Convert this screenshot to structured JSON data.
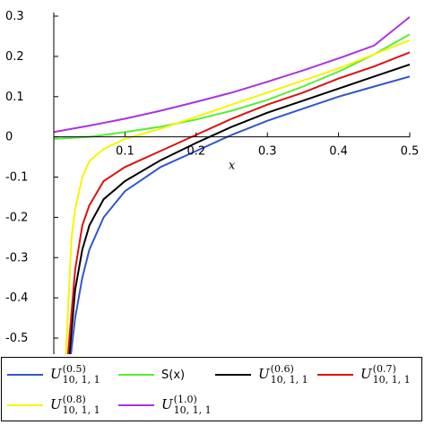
{
  "chart_data": {
    "type": "line",
    "xlabel": "x",
    "ylabel": "",
    "xlim": [
      0,
      0.5
    ],
    "ylim": [
      -0.54,
      0.3
    ],
    "xticks": [
      "0.1",
      "0.2",
      "0.3",
      "0.4",
      "0.5"
    ],
    "yticks": [
      "0.3",
      "0.2",
      "0.1",
      "0",
      "-0.1",
      "-0.2",
      "-0.3",
      "-0.4",
      "-0.5"
    ],
    "grid": false,
    "legend_position": "bottom",
    "series": [
      {
        "key": "u05",
        "color": "#3355cc",
        "x": [
          0.024,
          0.03,
          0.04,
          0.05,
          0.07,
          0.1,
          0.15,
          0.2,
          0.25,
          0.3,
          0.35,
          0.4,
          0.45,
          0.5
        ],
        "y": [
          -0.54,
          -0.45,
          -0.35,
          -0.28,
          -0.2,
          -0.135,
          -0.075,
          -0.035,
          0.005,
          0.04,
          0.07,
          0.1,
          0.125,
          0.15
        ]
      },
      {
        "key": "s",
        "color": "#55ee33",
        "x": [
          0.0,
          0.05,
          0.1,
          0.15,
          0.2,
          0.25,
          0.3,
          0.35,
          0.4,
          0.45,
          0.5
        ],
        "y": [
          -0.005,
          0.0,
          0.012,
          0.025,
          0.043,
          0.065,
          0.092,
          0.125,
          0.162,
          0.205,
          0.255
        ]
      },
      {
        "key": "u06",
        "color": "#000000",
        "x": [
          0.022,
          0.03,
          0.04,
          0.05,
          0.07,
          0.1,
          0.15,
          0.2,
          0.25,
          0.3,
          0.35,
          0.4,
          0.45,
          0.5
        ],
        "y": [
          -0.54,
          -0.38,
          -0.28,
          -0.22,
          -0.155,
          -0.11,
          -0.058,
          -0.015,
          0.025,
          0.06,
          0.09,
          0.12,
          0.15,
          0.18
        ]
      },
      {
        "key": "u07",
        "color": "#dd1111",
        "x": [
          0.02,
          0.03,
          0.04,
          0.05,
          0.07,
          0.1,
          0.15,
          0.2,
          0.25,
          0.3,
          0.35,
          0.4,
          0.45,
          0.5
        ],
        "y": [
          -0.54,
          -0.33,
          -0.22,
          -0.17,
          -0.11,
          -0.075,
          -0.035,
          0.005,
          0.045,
          0.08,
          0.11,
          0.145,
          0.175,
          0.21
        ]
      },
      {
        "key": "u08",
        "color": "#f5f500",
        "x": [
          0.017,
          0.025,
          0.03,
          0.04,
          0.05,
          0.07,
          0.1,
          0.15,
          0.2,
          0.25,
          0.3,
          0.35,
          0.4,
          0.45,
          0.5
        ],
        "y": [
          -0.54,
          -0.25,
          -0.18,
          -0.1,
          -0.06,
          -0.03,
          -0.005,
          0.02,
          0.05,
          0.08,
          0.11,
          0.14,
          0.17,
          0.205,
          0.24
        ]
      },
      {
        "key": "u10",
        "color": "#aa33dd",
        "x": [
          0.0,
          0.05,
          0.1,
          0.15,
          0.2,
          0.25,
          0.3,
          0.35,
          0.4,
          0.45,
          0.5
        ],
        "y": [
          0.012,
          0.028,
          0.045,
          0.065,
          0.087,
          0.11,
          0.137,
          0.165,
          0.195,
          0.227,
          0.298
        ]
      }
    ],
    "legend": [
      {
        "key": "u05",
        "base": "U",
        "sup": "(0.5)",
        "sub": "10, 1, 1",
        "color": "#3355cc"
      },
      {
        "key": "s",
        "text": "S(x)",
        "color": "#55ee33"
      },
      {
        "key": "u06",
        "base": "U",
        "sup": "(0.6)",
        "sub": "10, 1, 1",
        "color": "#000000"
      },
      {
        "key": "u07",
        "base": "U",
        "sup": "(0.7)",
        "sub": "10, 1, 1",
        "color": "#dd1111"
      },
      {
        "key": "u08",
        "base": "U",
        "sup": "(0.8)",
        "sub": "10, 1, 1",
        "color": "#f5f500"
      },
      {
        "key": "u10",
        "base": "U",
        "sup": "(1.0)",
        "sub": "10, 1, 1",
        "color": "#aa33dd"
      }
    ]
  }
}
